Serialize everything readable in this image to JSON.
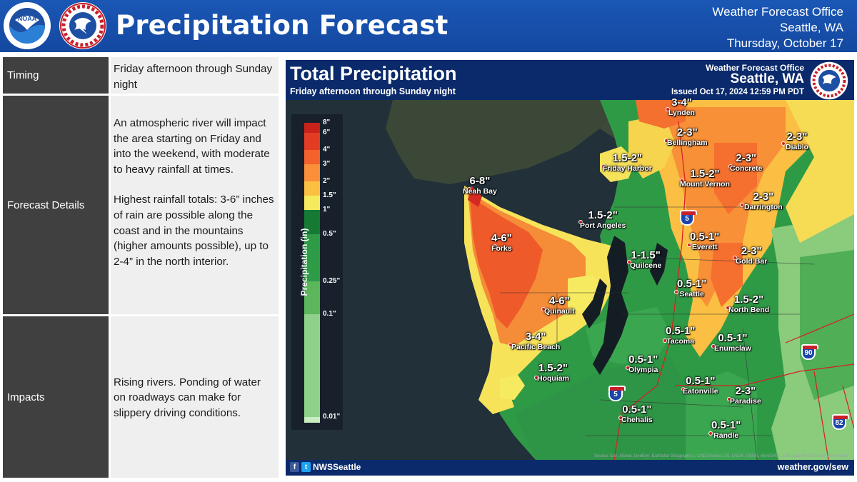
{
  "header": {
    "title": "Precipitation Forecast",
    "office": "Weather Forecast Office",
    "city": "Seattle, WA",
    "date": "Thursday, October 17",
    "noaa_logo_text": "NOAA",
    "nws_logo_text": "NATIONAL WEATHER SERVICE",
    "background_color": "#1a57b5"
  },
  "table": {
    "rows": [
      {
        "label": "Timing",
        "lines": [
          "Friday afternoon through Sunday night"
        ]
      },
      {
        "label": "Forecast Details",
        "lines": [
          "An atmospheric river will impact the area starting on Friday and into the weekend, with moderate to heavy rainfall at times.",
          "Highest rainfall totals: 3-6” inches of rain are possible along the coast and in the mountains (higher amounts possible), up to 2-4” in the north interior."
        ]
      },
      {
        "label": "Impacts",
        "lines": [
          "Rising rivers. Ponding of water on roadways can make for slippery driving conditions."
        ]
      }
    ]
  },
  "map": {
    "title": "Total Precipitation",
    "subtitle": "Friday afternoon through Sunday night",
    "office": "Weather Forecast Office",
    "city": "Seattle, WA",
    "issued": "Issued Oct 17, 2024 12:59 PM PDT",
    "footer_handle": "NWSSeattle",
    "footer_url": "weather.gov/sew",
    "source_credit": "Source: Esri, Maxar, GeoEye, Earthstar Geographics, CNES/Airbus DS, USDA, USGS, AeroGRID, IGN, and the GIS User Community",
    "legend": {
      "title": "Precipitation (in)",
      "bins": [
        {
          "label": "8\"",
          "color": "#c9221b"
        },
        {
          "label": "6\"",
          "color": "#e23c25"
        },
        {
          "label": "4\"",
          "color": "#f3622c"
        },
        {
          "label": "3\"",
          "color": "#f98f3a"
        },
        {
          "label": "2\"",
          "color": "#fbc042"
        },
        {
          "label": "1.5\"",
          "color": "#f5ea5e"
        },
        {
          "label": "1\"",
          "color": "#167a35"
        },
        {
          "label": "0.5\"",
          "color": "#2e9b47"
        },
        {
          "label": "0.25\"",
          "color": "#5bb65c"
        },
        {
          "label": "0.1\"",
          "color": "#8fd08a"
        },
        {
          "label": "0.01\"",
          "color": "#c9ecc1"
        }
      ]
    },
    "highways": [
      "5",
      "5",
      "90",
      "82"
    ],
    "locations": [
      {
        "amount": "3-4\"",
        "city": "Lynden"
      },
      {
        "amount": "2-3\"",
        "city": "Bellingham"
      },
      {
        "amount": "2-3\"",
        "city": "Diablo"
      },
      {
        "amount": "1.5-2\"",
        "city": "Friday Harbor"
      },
      {
        "amount": "2-3\"",
        "city": "Concrete"
      },
      {
        "amount": "1.5-2\"",
        "city": "Mount Vernon"
      },
      {
        "amount": "6-8\"",
        "city": "Neah Bay"
      },
      {
        "amount": "2-3\"",
        "city": "Darrington"
      },
      {
        "amount": "1.5-2\"",
        "city": "Port Angeles"
      },
      {
        "amount": "0.5-1\"",
        "city": "Everett"
      },
      {
        "amount": "4-6\"",
        "city": "Forks"
      },
      {
        "amount": "1-1.5\"",
        "city": "Quilcene"
      },
      {
        "amount": "2-3\"",
        "city": "Gold Bar"
      },
      {
        "amount": "0.5-1\"",
        "city": "Seattle"
      },
      {
        "amount": "4-6\"",
        "city": "Quinault"
      },
      {
        "amount": "1.5-2\"",
        "city": "North Bend"
      },
      {
        "amount": "3-4\"",
        "city": "Pacific Beach"
      },
      {
        "amount": "0.5-1\"",
        "city": "Tacoma"
      },
      {
        "amount": "0.5-1\"",
        "city": "Enumclaw"
      },
      {
        "amount": "0.5-1\"",
        "city": "Olympia"
      },
      {
        "amount": "1.5-2\"",
        "city": "Hoquiam"
      },
      {
        "amount": "0.5-1\"",
        "city": "Eatonville"
      },
      {
        "amount": "2-3\"",
        "city": "Paradise"
      },
      {
        "amount": "0.5-1\"",
        "city": "Chehalis"
      },
      {
        "amount": "0.5-1\"",
        "city": "Randle"
      }
    ]
  }
}
